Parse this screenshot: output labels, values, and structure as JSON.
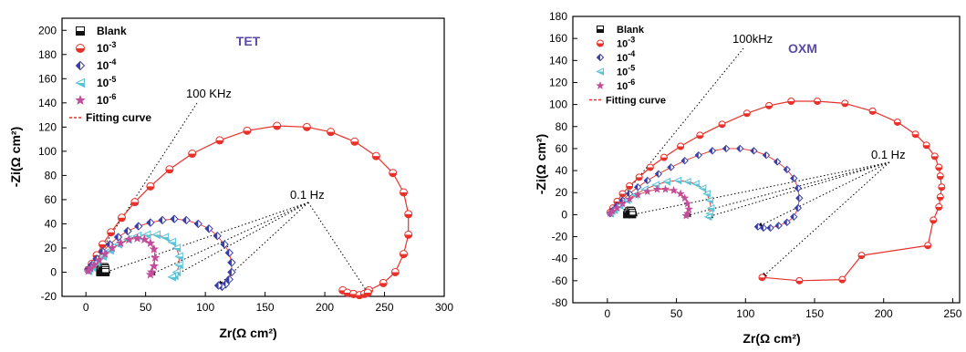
{
  "chart_data": [
    {
      "type": "scatter",
      "title": "TET",
      "title_color": "#5b4aa8",
      "xlabel": "Zr(Ω cm²)",
      "ylabel": "-Zi(Ω cm²)",
      "xlim": [
        -20,
        300
      ],
      "ylim": [
        -20,
        210
      ],
      "xticks": [
        0,
        50,
        100,
        150,
        200,
        250,
        300
      ],
      "yticks": [
        -20,
        0,
        20,
        40,
        60,
        80,
        100,
        120,
        140,
        160,
        180,
        200
      ],
      "grid": false,
      "legend_position": "top-left",
      "annotations": [
        "100 KHz",
        "0.1 Hz"
      ],
      "series": [
        {
          "name": "Blank",
          "marker": "half-square",
          "color": "#111111",
          "x": [
            12,
            12.5,
            13.5,
            14.5,
            15.5,
            16,
            16.3,
            16.4
          ],
          "y": [
            0,
            2,
            3.5,
            4.2,
            4,
            3,
            1.5,
            0
          ]
        },
        {
          "name": "10-3",
          "marker": "half-circle",
          "color": "#e8312a",
          "x": [
            2,
            5,
            9,
            14,
            21,
            30,
            41,
            54,
            70,
            89,
            112,
            135,
            160,
            185,
            205,
            225,
            243,
            257,
            266,
            270,
            270,
            266,
            259,
            249,
            237,
            224,
            215,
            219,
            224,
            229,
            233,
            236
          ],
          "y": [
            2,
            7,
            14,
            23,
            33,
            45,
            58,
            71,
            85,
            98,
            109,
            117,
            121,
            120,
            116,
            108,
            96,
            82,
            66,
            48,
            31,
            15,
            0,
            -9,
            -15,
            -18,
            -15,
            -17,
            -18,
            -19,
            -18,
            -17
          ]
        },
        {
          "name": "10-4",
          "marker": "half-diamond",
          "color": "#3a3fa8",
          "x": [
            2,
            5,
            9,
            14,
            20,
            27,
            35,
            44,
            54,
            64,
            74,
            84,
            94,
            103,
            110,
            116,
            120,
            122,
            122,
            120,
            117,
            114,
            111
          ],
          "y": [
            2,
            6,
            11,
            17,
            23,
            29,
            34,
            38,
            41,
            43,
            44,
            43,
            40,
            36,
            30,
            23,
            16,
            8,
            0,
            -6,
            -10,
            -12,
            -11
          ]
        },
        {
          "name": "10-5",
          "marker": "half-triangle",
          "color": "#5ac3d6",
          "x": [
            2,
            5,
            9,
            14,
            20,
            27,
            35,
            43,
            51,
            59,
            66,
            72,
            76,
            78,
            78,
            76,
            74,
            72
          ],
          "y": [
            1,
            4,
            8,
            13,
            18,
            23,
            27,
            30,
            31,
            31,
            29,
            25,
            20,
            13,
            6,
            0,
            -3,
            -4
          ]
        },
        {
          "name": "10-6",
          "marker": "half-star",
          "color": "#c14e9a",
          "x": [
            2,
            4,
            7,
            11,
            16,
            22,
            29,
            36,
            43,
            49,
            54,
            57,
            58,
            57,
            55,
            54
          ],
          "y": [
            1,
            3,
            6,
            10,
            15,
            20,
            24,
            27,
            28,
            27,
            24,
            19,
            12,
            5,
            0,
            -2
          ]
        }
      ],
      "fitting_curve_label": "Fitting curve",
      "fitting_color": "#e8312a"
    },
    {
      "type": "scatter",
      "title": "OXM",
      "title_color": "#5b4aa8",
      "xlabel": "Zr(Ω cm²)",
      "ylabel": "-Zi(Ω cm²)",
      "xlim": [
        -25,
        255
      ],
      "ylim": [
        -80,
        180
      ],
      "xticks": [
        0,
        50,
        100,
        150,
        200,
        250
      ],
      "yticks": [
        -80,
        -60,
        -40,
        -20,
        0,
        20,
        40,
        60,
        80,
        100,
        120,
        140,
        160,
        180
      ],
      "grid": false,
      "legend_position": "top-left",
      "annotations": [
        "100kHz",
        "0.1 Hz"
      ],
      "series": [
        {
          "name": "Blank",
          "marker": "half-square",
          "color": "#111111",
          "x": [
            14,
            14.5,
            15.5,
            16.5,
            17.5,
            18,
            18.2
          ],
          "y": [
            0,
            2,
            3.5,
            4,
            3.5,
            2,
            0
          ]
        },
        {
          "name": "10-3",
          "marker": "half-circle",
          "color": "#e8312a",
          "x": [
            2,
            4,
            7,
            11,
            16,
            23,
            31,
            41,
            53,
            67,
            83,
            101,
            117,
            133,
            152,
            172,
            192,
            210,
            223,
            231,
            237,
            240,
            241,
            242,
            241,
            240,
            236,
            232,
            184,
            170,
            139,
            112
          ],
          "y": [
            2,
            6,
            12,
            19,
            26,
            34,
            43,
            52,
            62,
            72,
            82,
            92,
            99,
            103,
            103,
            101,
            94,
            84,
            73,
            63,
            53,
            43,
            35,
            25,
            16,
            7,
            -5,
            -28,
            -37,
            -59,
            -60,
            -57
          ]
        },
        {
          "name": "10-4",
          "marker": "half-diamond",
          "color": "#3a3fa8",
          "x": [
            2,
            4,
            7,
            11,
            16,
            22,
            29,
            37,
            46,
            56,
            66,
            76,
            86,
            96,
            106,
            115,
            123,
            130,
            135,
            138,
            139,
            138,
            135,
            130,
            124,
            118,
            113,
            109
          ],
          "y": [
            1,
            4,
            8,
            13,
            19,
            25,
            31,
            37,
            43,
            49,
            54,
            58,
            60,
            60,
            58,
            54,
            48,
            41,
            33,
            24,
            15,
            6,
            -2,
            -7,
            -10,
            -12,
            -12,
            -11
          ]
        },
        {
          "name": "10-5",
          "marker": "half-triangle",
          "color": "#5ac3d6",
          "x": [
            2,
            5,
            9,
            14,
            20,
            27,
            35,
            43,
            51,
            58,
            64,
            69,
            72,
            74,
            75,
            74,
            73
          ],
          "y": [
            1,
            4,
            8,
            13,
            18,
            23,
            27,
            30,
            31,
            30,
            28,
            24,
            19,
            13,
            6,
            1,
            -2
          ]
        },
        {
          "name": "10-6",
          "marker": "half-star",
          "color": "#c14e9a",
          "x": [
            2,
            4,
            7,
            11,
            16,
            22,
            29,
            36,
            42,
            48,
            53,
            56,
            58,
            59,
            58,
            57
          ],
          "y": [
            1,
            3,
            6,
            10,
            14,
            18,
            21,
            23,
            23,
            22,
            19,
            15,
            10,
            5,
            1,
            -1
          ]
        }
      ],
      "fitting_curve_label": "Fitting curve",
      "fitting_color": "#e8312a"
    }
  ]
}
